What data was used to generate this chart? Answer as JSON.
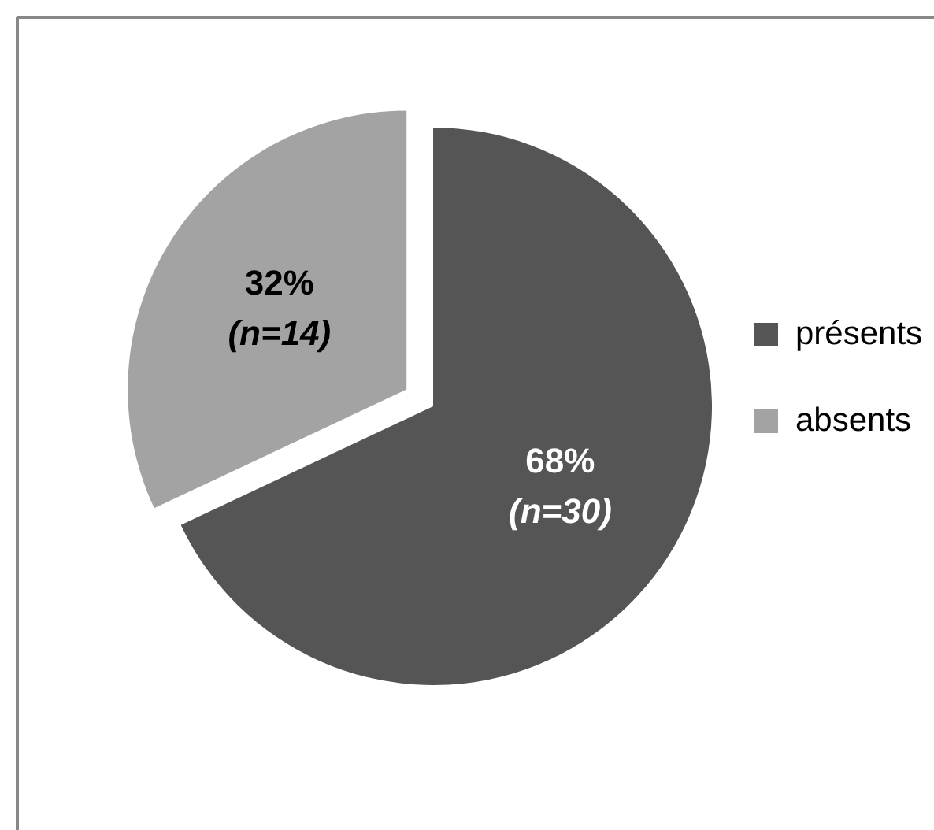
{
  "chart_data": {
    "type": "pie",
    "categories": [
      "présents",
      "absents"
    ],
    "values": [
      68,
      32
    ],
    "colors": [
      "#555555",
      "#a3a3a3"
    ],
    "value_labels": [
      "68%",
      "32%"
    ],
    "annotations": [
      "(n=30)",
      "(n=14)"
    ],
    "legend": "right"
  }
}
